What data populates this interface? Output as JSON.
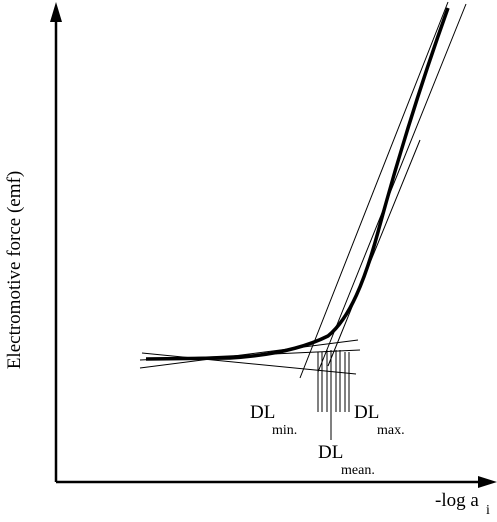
{
  "axes": {
    "y_label": "Electromotive force (emf)",
    "x_label": "-log a",
    "x_label_sub": "i"
  },
  "labels": [
    {
      "main": "DL",
      "sub": "min."
    },
    {
      "main": "DL",
      "sub": "mean."
    },
    {
      "main": "DL",
      "sub": "max."
    }
  ]
}
